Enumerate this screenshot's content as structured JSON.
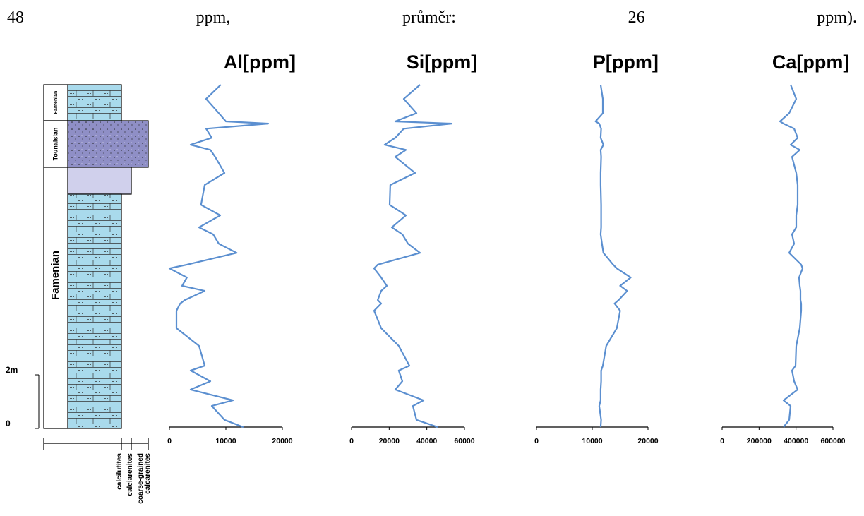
{
  "intro_words": [
    "48",
    "ppm,",
    "průměr:",
    "26",
    "ppm)."
  ],
  "column": {
    "units": [
      "Famenian",
      "Tounaisian",
      "Famenian"
    ],
    "depth_ticks": [
      {
        "value": 2,
        "label": "2m"
      },
      0
    ],
    "ylim": [
      0,
      12.82
    ],
    "lithology": [
      "calcilutites",
      "calciarenites",
      "coarse-grained calcarenites"
    ],
    "depth": [
      12.82,
      12.29,
      11.76,
      11.45,
      11.37,
      11.18,
      10.84,
      10.58,
      10.39,
      10.13,
      9.53,
      9.08,
      8.34,
      7.95,
      7.5,
      7.24,
      6.89,
      6.55,
      6.11,
      5.97,
      5.63,
      5.32,
      5.13,
      4.79,
      4.66,
      4.39,
      3.74,
      3.08,
      2.34,
      2.16,
      1.76,
      1.45,
      1.05,
      0.84,
      0.32,
      0.05
    ]
  },
  "chart_data": [
    {
      "type": "line",
      "title": "Al[ppm]",
      "xlim": [
        0,
        20000
      ],
      "xticks": [
        0,
        10000,
        20000
      ],
      "color": "#5b8fd0",
      "values": [
        9100,
        6500,
        8750,
        10000,
        17500,
        6500,
        7500,
        3750,
        7250,
        8100,
        9750,
        6250,
        5600,
        9000,
        5250,
        7750,
        8750,
        11900,
        3100,
        0,
        3100,
        2250,
        6250,
        2750,
        1900,
        1250,
        1250,
        5250,
        6250,
        3750,
        7250,
        3750,
        11250,
        7500,
        9750,
        13100
      ]
    },
    {
      "type": "line",
      "title": "Si[ppm]",
      "xlim": [
        0,
        60000
      ],
      "xticks": [
        0,
        20000,
        40000,
        60000
      ],
      "color": "#5b8fd0",
      "values": [
        36400,
        27750,
        34500,
        23250,
        53250,
        27750,
        23250,
        17600,
        28900,
        23250,
        33750,
        20600,
        20250,
        28900,
        21400,
        27000,
        30000,
        36400,
        13900,
        12000,
        15750,
        18750,
        15750,
        13900,
        15750,
        12000,
        15750,
        25100,
        30750,
        25100,
        27000,
        23250,
        38250,
        32600,
        34500,
        45750
      ]
    },
    {
      "type": "line",
      "title": "P[ppm]",
      "xlim": [
        0,
        20000
      ],
      "xticks": [
        0,
        10000,
        20000
      ],
      "color": "#5b8fd0",
      "values": [
        11500,
        11900,
        11900,
        10600,
        11250,
        11600,
        11500,
        12000,
        11500,
        11600,
        11500,
        11500,
        11600,
        11600,
        11600,
        11500,
        11750,
        12000,
        13750,
        14400,
        16900,
        15000,
        16250,
        14750,
        14000,
        15000,
        14400,
        12500,
        11900,
        11600,
        11600,
        11500,
        11500,
        11250,
        11600,
        11500
      ]
    },
    {
      "type": "line",
      "title": "Ca[ppm]",
      "xlim": [
        0,
        600000
      ],
      "xticks": [
        0,
        200000,
        400000,
        600000
      ],
      "color": "#5b8fd0",
      "values": [
        370700,
        401300,
        363100,
        313400,
        332500,
        389800,
        408900,
        370700,
        420400,
        378400,
        401300,
        408900,
        408900,
        401300,
        401300,
        378400,
        389800,
        363100,
        428100,
        435700,
        416600,
        420400,
        424200,
        424200,
        428100,
        428100,
        420400,
        401300,
        397500,
        378400,
        389800,
        408900,
        332500,
        370700,
        363100,
        332500
      ]
    }
  ]
}
